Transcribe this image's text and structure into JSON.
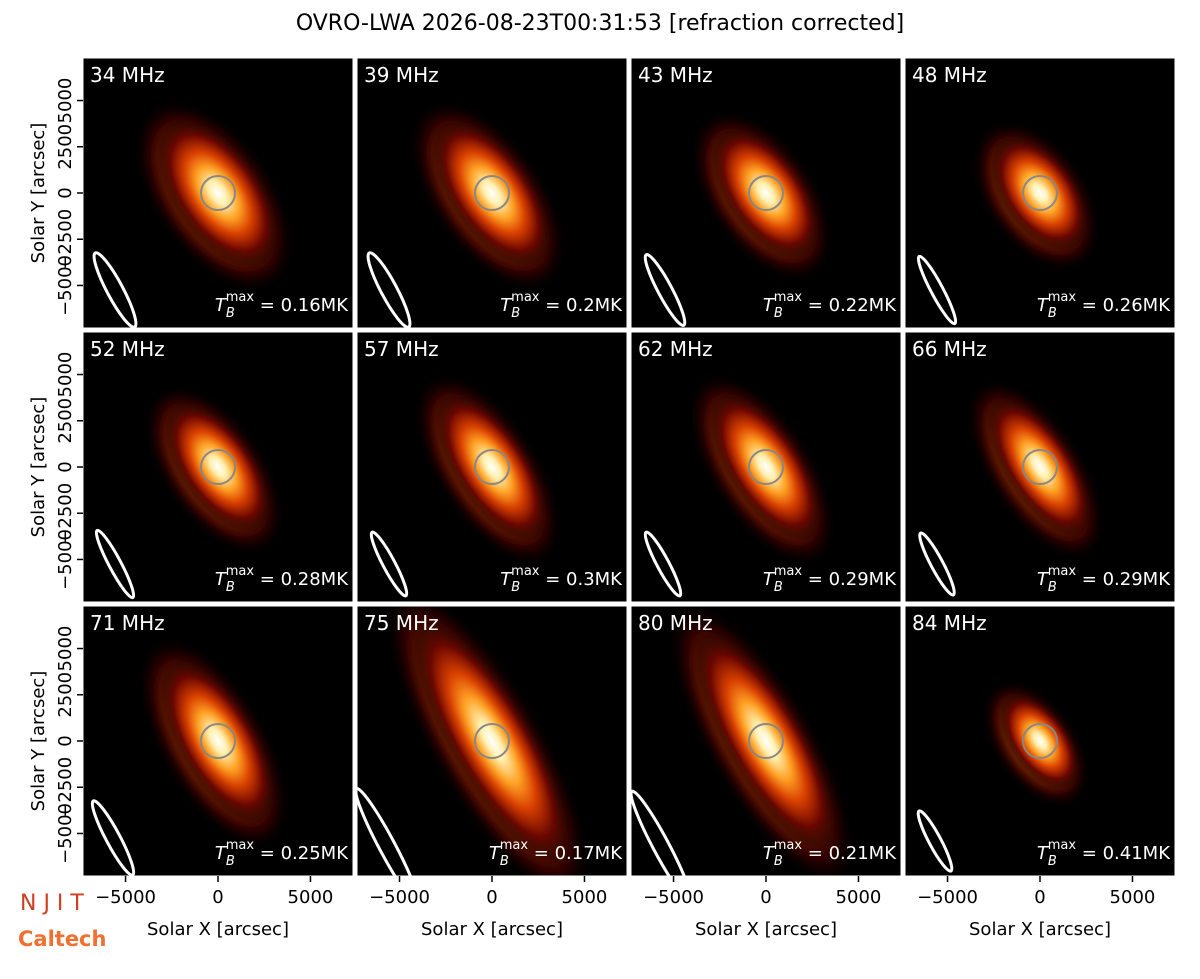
{
  "chart_data": {
    "type": "image_grid",
    "title": "OVRO-LWA 2026-08-23T00:31:53 [refraction corrected]",
    "xlabel": "Solar X [arcsec]",
    "ylabel": "Solar Y [arcsec]",
    "xlim": [
      -7300,
      7300
    ],
    "ylim": [
      -7300,
      7300
    ],
    "xticks": [
      {
        "value": -5000,
        "label": "−5000"
      },
      0,
      5000
    ],
    "yticks": [
      {
        "value": -5000,
        "label": "−5000"
      },
      {
        "value": -2500,
        "label": "−2500"
      },
      0,
      2500,
      5000
    ],
    "tb_symbol": "T",
    "tb_sub": "B",
    "tb_sup": "max",
    "panels": [
      {
        "freq": "34 MHz",
        "tb_max": " = 0.16MK"
      },
      {
        "freq": "39 MHz",
        "tb_max": " = 0.2MK"
      },
      {
        "freq": "43 MHz",
        "tb_max": " = 0.22MK"
      },
      {
        "freq": "48 MHz",
        "tb_max": " = 0.26MK"
      },
      {
        "freq": "52 MHz",
        "tb_max": " = 0.28MK"
      },
      {
        "freq": "57 MHz",
        "tb_max": " = 0.3MK"
      },
      {
        "freq": "62 MHz",
        "tb_max": " = 0.29MK"
      },
      {
        "freq": "66 MHz",
        "tb_max": " = 0.29MK"
      },
      {
        "freq": "71 MHz",
        "tb_max": " = 0.25MK"
      },
      {
        "freq": "75 MHz",
        "tb_max": " = 0.17MK"
      },
      {
        "freq": "80 MHz",
        "tb_max": " = 0.21MK"
      },
      {
        "freq": "84 MHz",
        "tb_max": " = 0.41MK"
      }
    ]
  },
  "logos": {
    "njit": "N J I T",
    "caltech": "Caltech"
  }
}
